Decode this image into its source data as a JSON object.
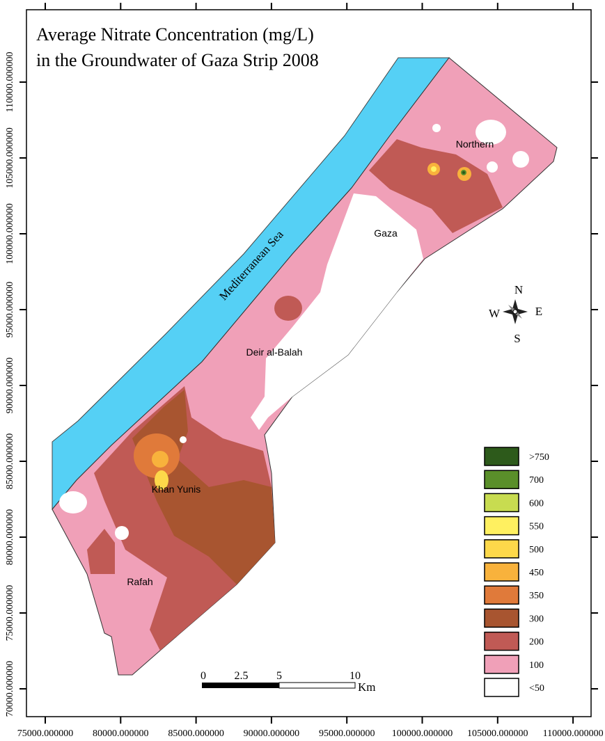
{
  "title": [
    "Average Nitrate Concentration (mg/L)",
    "in the Groundwater of Gaza Strip 2008"
  ],
  "x_axis": {
    "ticks": [
      {
        "value": 75000,
        "label": "75000.000000"
      },
      {
        "value": 80000,
        "label": "80000.000000"
      },
      {
        "value": 85000,
        "label": "85000.000000"
      },
      {
        "value": 90000,
        "label": "90000.000000"
      },
      {
        "value": 95000,
        "label": "95000.000000"
      },
      {
        "value": 100000,
        "label": "100000.000000"
      },
      {
        "value": 105000,
        "label": "105000.000000"
      },
      {
        "value": 110000,
        "label": "110000.000000"
      }
    ]
  },
  "y_axis": {
    "ticks": [
      {
        "value": 70000,
        "label": "70000.000000"
      },
      {
        "value": 75000,
        "label": "75000.000000"
      },
      {
        "value": 80000,
        "label": "80000.000000"
      },
      {
        "value": 85000,
        "label": "85000.000000"
      },
      {
        "value": 90000,
        "label": "90000.000000"
      },
      {
        "value": 95000,
        "label": "95000.000000"
      },
      {
        "value": 100000,
        "label": "100000.000000"
      },
      {
        "value": 105000,
        "label": "105000.000000"
      },
      {
        "value": 110000,
        "label": "110000.000000"
      }
    ]
  },
  "sea": "Mediterranean Sea",
  "places": [
    "Northern",
    "Gaza",
    "Deir al-Balah",
    "Khan Yunis",
    "Rafah"
  ],
  "compass": {
    "n": "N",
    "s": "S",
    "e": "E",
    "w": "W"
  },
  "scale_bar": {
    "ticks": [
      0,
      2.5,
      5,
      10
    ],
    "unit": "Km"
  },
  "legend": [
    {
      "label": ">750",
      "color": "#2d5a1b"
    },
    {
      "label": "700",
      "color": "#5a8f2a"
    },
    {
      "label": "600",
      "color": "#c8dc50"
    },
    {
      "label": "550",
      "color": "#fff060"
    },
    {
      "label": "500",
      "color": "#fdd84a"
    },
    {
      "label": "450",
      "color": "#f8b23c"
    },
    {
      "label": "350",
      "color": "#e07a3a"
    },
    {
      "label": "300",
      "color": "#a85530"
    },
    {
      "label": "200",
      "color": "#c05a55"
    },
    {
      "label": "100",
      "color": "#f0a0b8"
    },
    {
      "label": "<50",
      "color": "#ffffff"
    }
  ]
}
